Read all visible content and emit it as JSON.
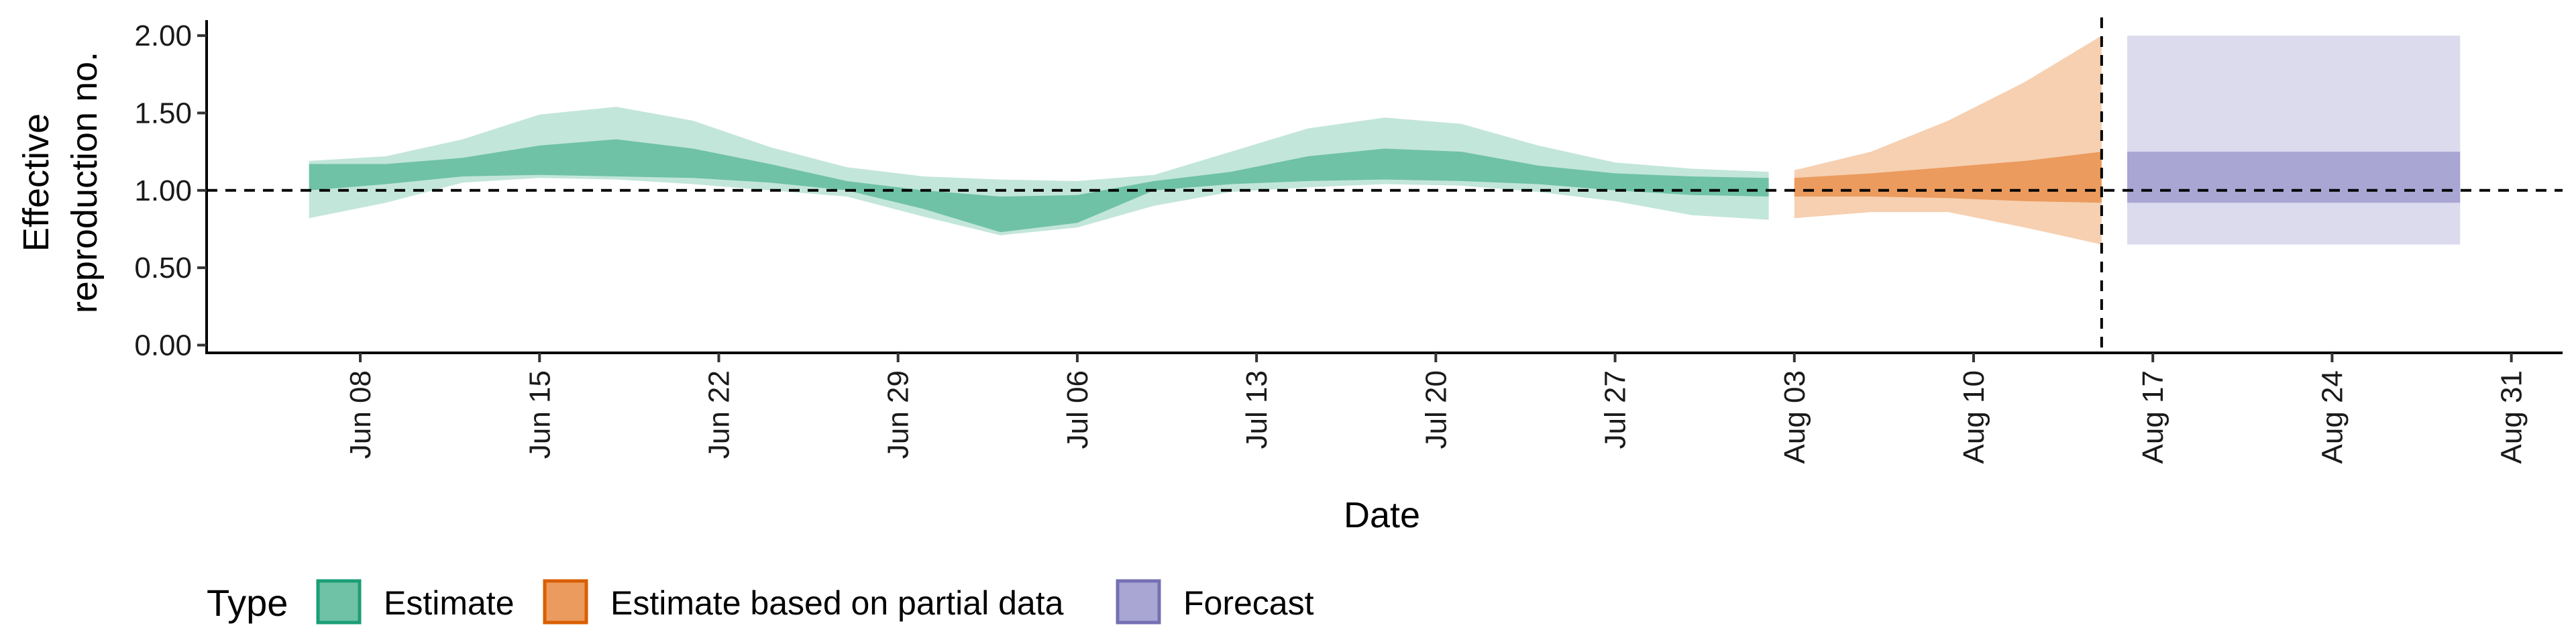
{
  "chart_data": {
    "type": "area",
    "xlabel": "Date",
    "ylabel_lines": [
      "Effective",
      "reproduction no."
    ],
    "ylim": [
      -0.05,
      2.1
    ],
    "xlim": [
      "2020-06-02",
      "2020-09-02"
    ],
    "y_ticks": [
      0.0,
      0.5,
      1.0,
      1.5,
      2.0
    ],
    "y_tick_labels": [
      "0.00",
      "0.50",
      "1.00",
      "1.50",
      "2.00"
    ],
    "x_ticks": [
      "2020-06-08",
      "2020-06-15",
      "2020-06-22",
      "2020-06-29",
      "2020-07-06",
      "2020-07-13",
      "2020-07-20",
      "2020-07-27",
      "2020-08-03",
      "2020-08-10",
      "2020-08-17",
      "2020-08-24",
      "2020-08-31"
    ],
    "x_tick_labels": [
      "Jun 08",
      "Jun 15",
      "Jun 22",
      "Jun 29",
      "Jul 06",
      "Jul 13",
      "Jul 20",
      "Jul 27",
      "Aug 03",
      "Aug 10",
      "Aug 17",
      "Aug 24",
      "Aug 31"
    ],
    "reference_hline": 1.0,
    "reference_vline": "2020-08-15",
    "legend": {
      "title": "Type",
      "position": "bottom",
      "entries": [
        {
          "label": "Estimate",
          "fill": "#6fc2a5",
          "stroke": "#1b9e77"
        },
        {
          "label": "Estimate based on partial data",
          "fill": "#eb9b5e",
          "stroke": "#d95f02"
        },
        {
          "label": "Forecast",
          "fill": "#a9a6d4",
          "stroke": "#7570b3"
        }
      ]
    },
    "series": [
      {
        "name": "Estimate",
        "outer_color": "#c3e6da",
        "inner_color": "#6fc2a5",
        "points": [
          {
            "x": "2020-06-06",
            "lo90": 0.82,
            "lo50": 1.0,
            "hi50": 1.17,
            "hi90": 1.19
          },
          {
            "x": "2020-06-09",
            "lo90": 0.92,
            "lo50": 1.04,
            "hi50": 1.17,
            "hi90": 1.22
          },
          {
            "x": "2020-06-12",
            "lo90": 1.05,
            "lo50": 1.09,
            "hi50": 1.21,
            "hi90": 1.33
          },
          {
            "x": "2020-06-15",
            "lo90": 1.08,
            "lo50": 1.1,
            "hi50": 1.29,
            "hi90": 1.49
          },
          {
            "x": "2020-06-18",
            "lo90": 1.07,
            "lo50": 1.09,
            "hi50": 1.33,
            "hi90": 1.54
          },
          {
            "x": "2020-06-21",
            "lo90": 1.04,
            "lo50": 1.08,
            "hi50": 1.27,
            "hi90": 1.45
          },
          {
            "x": "2020-06-24",
            "lo90": 1.0,
            "lo50": 1.05,
            "hi50": 1.17,
            "hi90": 1.28
          },
          {
            "x": "2020-06-27",
            "lo90": 0.96,
            "lo50": 1.0,
            "hi50": 1.06,
            "hi90": 1.15
          },
          {
            "x": "2020-06-30",
            "lo90": 0.83,
            "lo50": 0.88,
            "hi50": 1.0,
            "hi90": 1.09
          },
          {
            "x": "2020-07-03",
            "lo90": 0.71,
            "lo50": 0.73,
            "hi50": 0.96,
            "hi90": 1.07
          },
          {
            "x": "2020-07-06",
            "lo90": 0.76,
            "lo50": 0.79,
            "hi50": 0.97,
            "hi90": 1.06
          },
          {
            "x": "2020-07-09",
            "lo90": 0.9,
            "lo50": 1.0,
            "hi50": 1.06,
            "hi90": 1.1
          },
          {
            "x": "2020-07-12",
            "lo90": 0.99,
            "lo50": 1.04,
            "hi50": 1.12,
            "hi90": 1.25
          },
          {
            "x": "2020-07-15",
            "lo90": 1.02,
            "lo50": 1.06,
            "hi50": 1.22,
            "hi90": 1.4
          },
          {
            "x": "2020-07-18",
            "lo90": 1.04,
            "lo50": 1.07,
            "hi50": 1.27,
            "hi90": 1.47
          },
          {
            "x": "2020-07-21",
            "lo90": 1.03,
            "lo50": 1.06,
            "hi50": 1.25,
            "hi90": 1.43
          },
          {
            "x": "2020-07-24",
            "lo90": 0.99,
            "lo50": 1.04,
            "hi50": 1.16,
            "hi90": 1.29
          },
          {
            "x": "2020-07-27",
            "lo90": 0.93,
            "lo50": 1.0,
            "hi50": 1.11,
            "hi90": 1.18
          },
          {
            "x": "2020-07-30",
            "lo90": 0.84,
            "lo50": 0.97,
            "hi50": 1.09,
            "hi90": 1.14
          },
          {
            "x": "2020-08-02",
            "lo90": 0.81,
            "lo50": 0.96,
            "hi50": 1.08,
            "hi90": 1.12
          }
        ]
      },
      {
        "name": "Estimate based on partial data",
        "outer_color": "#f6d0b1",
        "inner_color": "#eb9b5e",
        "points": [
          {
            "x": "2020-08-03",
            "lo90": 0.82,
            "lo50": 0.96,
            "hi50": 1.08,
            "hi90": 1.13
          },
          {
            "x": "2020-08-06",
            "lo90": 0.86,
            "lo50": 0.96,
            "hi50": 1.11,
            "hi90": 1.25
          },
          {
            "x": "2020-08-09",
            "lo90": 0.86,
            "lo50": 0.95,
            "hi50": 1.15,
            "hi90": 1.45
          },
          {
            "x": "2020-08-12",
            "lo90": 0.76,
            "lo50": 0.93,
            "hi50": 1.19,
            "hi90": 1.7
          },
          {
            "x": "2020-08-15",
            "lo90": 0.65,
            "lo50": 0.92,
            "hi50": 1.25,
            "hi90": 2.0
          }
        ]
      },
      {
        "name": "Forecast",
        "outer_color": "#dcdbee",
        "inner_color": "#a9a6d4",
        "points": [
          {
            "x": "2020-08-16",
            "lo90": 0.65,
            "lo50": 0.92,
            "hi50": 1.25,
            "hi90": 2.0
          },
          {
            "x": "2020-08-29",
            "lo90": 0.65,
            "lo50": 0.92,
            "hi50": 1.25,
            "hi90": 2.0
          }
        ]
      }
    ]
  }
}
